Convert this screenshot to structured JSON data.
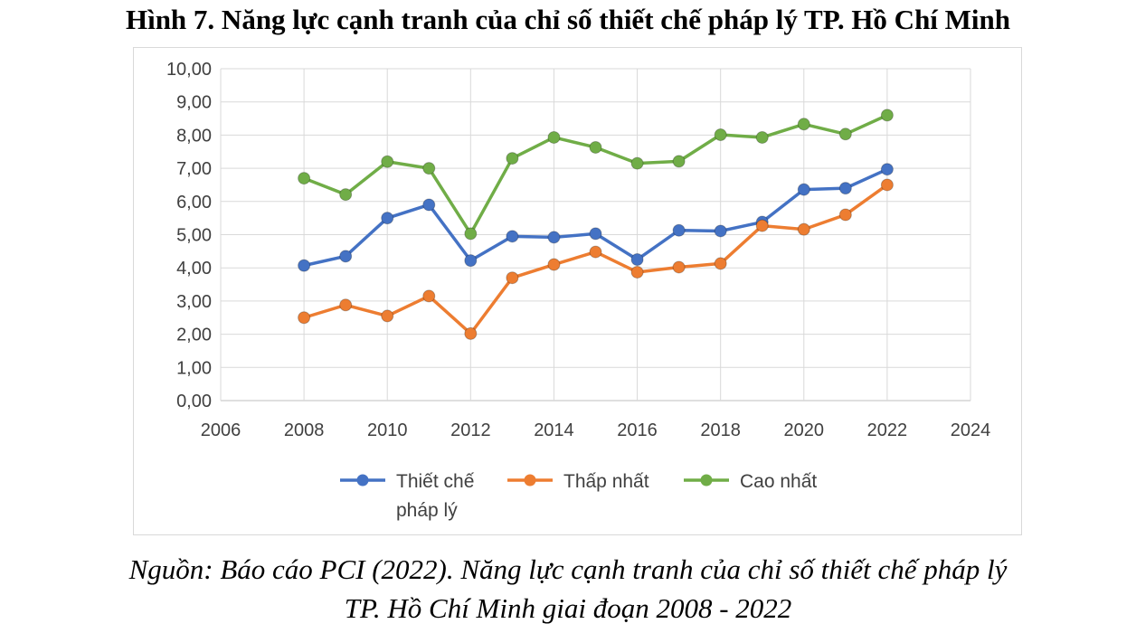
{
  "figure_title": "Hình 7. Năng lực cạnh tranh của chỉ số thiết chế pháp lý TP. Hồ Chí Minh",
  "source_line1": "Nguồn: Báo cáo PCI (2022). Năng lực cạnh tranh của chỉ số thiết chế pháp lý",
  "source_line2": "TP. Hồ Chí Minh giai đoạn 2008 - 2022",
  "chart_data": {
    "type": "scatter",
    "mode": "lines+markers",
    "x": [
      2008,
      2009,
      2010,
      2011,
      2012,
      2013,
      2014,
      2015,
      2016,
      2017,
      2018,
      2019,
      2020,
      2021,
      2022
    ],
    "series": [
      {
        "name": "Thiết chế pháp lý",
        "color": "#4472c4",
        "values": [
          4.07,
          4.35,
          5.5,
          5.9,
          4.22,
          4.95,
          4.92,
          5.03,
          4.25,
          5.13,
          5.11,
          5.38,
          6.36,
          6.4,
          6.97
        ]
      },
      {
        "name": "Thấp nhất",
        "color": "#ed7d31",
        "values": [
          2.5,
          2.88,
          2.55,
          3.15,
          2.02,
          3.7,
          4.1,
          4.48,
          3.87,
          4.02,
          4.13,
          5.27,
          5.16,
          5.6,
          6.5
        ]
      },
      {
        "name": "Cao nhất",
        "color": "#70ad47",
        "values": [
          6.7,
          6.21,
          7.2,
          7.0,
          5.03,
          7.3,
          7.93,
          7.63,
          7.15,
          7.21,
          8.01,
          7.93,
          8.33,
          8.03,
          8.6
        ]
      }
    ],
    "xlim": [
      2006,
      2024
    ],
    "ylim": [
      0,
      10
    ],
    "x_ticks": [
      "2006",
      "2008",
      "2010",
      "2012",
      "2014",
      "2016",
      "2018",
      "2020",
      "2022",
      "2024"
    ],
    "y_ticks": [
      "0,00",
      "1,00",
      "2,00",
      "3,00",
      "4,00",
      "5,00",
      "6,00",
      "7,00",
      "8,00",
      "9,00",
      "10,00"
    ],
    "legend": {
      "placement": "bottom",
      "labels": [
        [
          "Thiết chế",
          "pháp lý"
        ],
        [
          "Thấp nhất"
        ],
        [
          "Cao nhất"
        ]
      ]
    },
    "grid": true,
    "gridline_color": "#d9d9d9"
  }
}
